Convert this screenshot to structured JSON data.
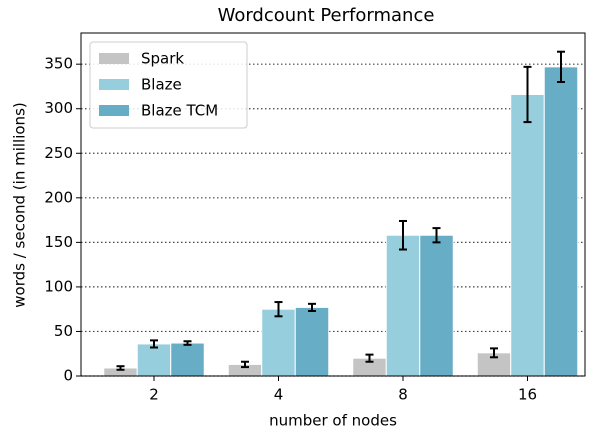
{
  "chart_data": {
    "type": "bar",
    "title": "Wordcount Performance",
    "xlabel": "number of nodes",
    "ylabel": "words / second (in millions)",
    "categories": [
      "2",
      "4",
      "8",
      "16"
    ],
    "series": [
      {
        "name": "Spark",
        "color": "#c4c4c4",
        "values": [
          9,
          13,
          20,
          26
        ],
        "errors": [
          2,
          3,
          4,
          5
        ]
      },
      {
        "name": "Blaze",
        "color": "#96cedd",
        "values": [
          36,
          75,
          158,
          316
        ],
        "errors": [
          4,
          8,
          16,
          31
        ]
      },
      {
        "name": "Blaze TCM",
        "color": "#67adc6",
        "values": [
          37,
          77,
          158,
          347
        ],
        "errors": [
          2,
          4,
          8,
          17
        ]
      }
    ],
    "ylim": [
      0,
      385
    ],
    "yticks": [
      0,
      50,
      100,
      150,
      200,
      250,
      300,
      350
    ],
    "grid": true,
    "legend": "upper left"
  }
}
